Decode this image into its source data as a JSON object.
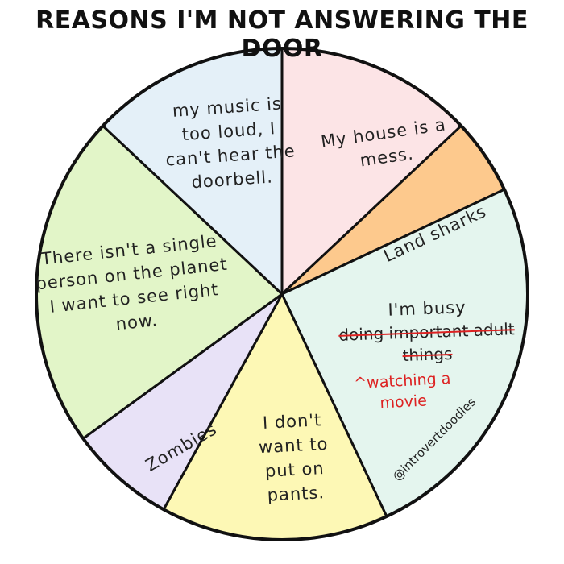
{
  "chart_data": {
    "type": "pie",
    "title": "REASONS I'M NOT ANSWERING THE DOOR",
    "categories": [
      "My house is a mess.",
      "Land sharks",
      "I'm busy",
      "I don't want to put on pants.",
      "Zombies",
      "There isn't a single person on the planet I want to see right now.",
      "my music is too loud, I can't hear the doorbell."
    ],
    "values": [
      13,
      5,
      25,
      15,
      7,
      22,
      13
    ],
    "colors": [
      "#fce4e6",
      "#fdc98d",
      "#e4f5ee",
      "#fdf8b5",
      "#e8e2f7",
      "#e2f5c8",
      "#e4f0f8"
    ],
    "struck_text": "doing important adult things",
    "correction": "^watching a movie",
    "credit": "@introvertdoodles"
  }
}
